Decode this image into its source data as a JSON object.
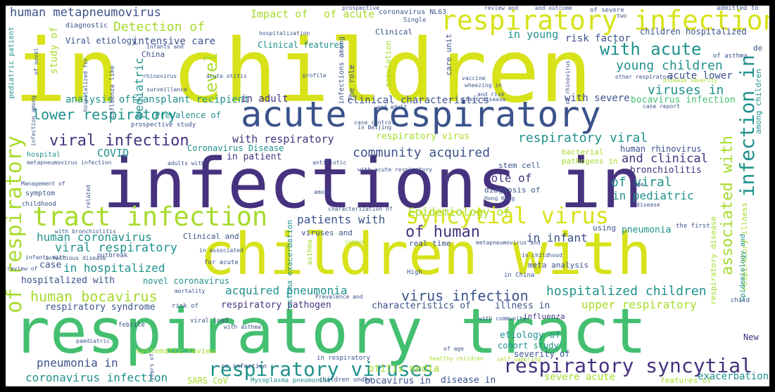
{
  "palette": {
    "yellow": "#d7e219",
    "lime": "#a6db2c",
    "green": "#44bf70",
    "teal": "#20918c",
    "blue": "#2e6f8e",
    "indigo": "#3b528b",
    "purple": "#46327e",
    "dark": "#440154",
    "border": "#000000",
    "background": "#ffffff"
  },
  "words": [
    {
      "text": "in children",
      "color": "yellow"
    },
    {
      "text": "infections in",
      "color": "purple"
    },
    {
      "text": "respiratory tract",
      "color": "green"
    },
    {
      "text": "children with",
      "color": "yellow"
    },
    {
      "text": "acute respiratory",
      "color": "indigo"
    },
    {
      "text": "respiratory infection",
      "color": "yellow"
    },
    {
      "text": "tract infection",
      "color": "lime"
    },
    {
      "text": "syncytial virus",
      "color": "yellow"
    },
    {
      "text": "respiratory syncytial",
      "color": "purple"
    },
    {
      "text": "respiratory viruses",
      "color": "teal"
    },
    {
      "text": "human metapneumovirus",
      "color": "indigo"
    },
    {
      "text": "of respiratory",
      "color": "lime"
    },
    {
      "text": "infection in",
      "color": "teal"
    },
    {
      "text": "associated with",
      "color": "lime"
    },
    {
      "text": "with acute",
      "color": "teal"
    },
    {
      "text": "young children",
      "color": "teal"
    },
    {
      "text": "viral infection",
      "color": "purple"
    },
    {
      "text": "lower respiratory",
      "color": "teal"
    },
    {
      "text": "human bocavirus",
      "color": "lime"
    },
    {
      "text": "of human",
      "color": "purple"
    },
    {
      "text": "hospitalized children",
      "color": "teal"
    },
    {
      "text": "virus infection",
      "color": "indigo"
    },
    {
      "text": "Detection of",
      "color": "lime"
    },
    {
      "text": "viral respiratory",
      "color": "teal"
    },
    {
      "text": "respiratory viral",
      "color": "teal"
    },
    {
      "text": "community acquired",
      "color": "indigo"
    },
    {
      "text": "acquired pneumonia",
      "color": "teal"
    },
    {
      "text": "pneumonia in",
      "color": "indigo"
    },
    {
      "text": "coronavirus infection",
      "color": "teal"
    },
    {
      "text": "Epidemiology of",
      "color": "lime"
    },
    {
      "text": "human coronavirus",
      "color": "teal"
    },
    {
      "text": "patients with",
      "color": "indigo"
    },
    {
      "text": "in hospitalized",
      "color": "teal"
    },
    {
      "text": "viruses in",
      "color": "teal"
    },
    {
      "text": "upper respiratory",
      "color": "lime"
    },
    {
      "text": "and clinical",
      "color": "purple"
    },
    {
      "text": "with respiratory",
      "color": "purple"
    },
    {
      "text": "in pediatric",
      "color": "teal"
    },
    {
      "text": "of viral",
      "color": "teal"
    },
    {
      "text": "Role of",
      "color": "purple"
    },
    {
      "text": "in infant",
      "color": "indigo"
    },
    {
      "text": "Impact of",
      "color": "lime"
    },
    {
      "text": "of acute",
      "color": "lime"
    },
    {
      "text": "in young",
      "color": "teal"
    },
    {
      "text": "risk factor",
      "color": "indigo"
    },
    {
      "text": "children hospitalized",
      "color": "indigo"
    },
    {
      "text": "acute lower",
      "color": "indigo"
    },
    {
      "text": "intensive care",
      "color": "indigo"
    },
    {
      "text": "Viral etiology",
      "color": "indigo"
    },
    {
      "text": "analysis of",
      "color": "teal"
    },
    {
      "text": "transplant recipient",
      "color": "teal"
    },
    {
      "text": "in adult",
      "color": "purple"
    },
    {
      "text": "Prevalence of",
      "color": "teal"
    },
    {
      "text": "clinical characteristics",
      "color": "indigo"
    },
    {
      "text": "with severe",
      "color": "indigo"
    },
    {
      "text": "bocavirus infection",
      "color": "green"
    },
    {
      "text": "respiratory virus",
      "color": "lime"
    },
    {
      "text": "bronchiolitis",
      "color": "purple"
    },
    {
      "text": "COVID",
      "color": "teal"
    },
    {
      "text": "in patient",
      "color": "purple"
    },
    {
      "text": "Coronavirus Disease",
      "color": "teal"
    },
    {
      "text": "human rhinovirus",
      "color": "indigo"
    },
    {
      "text": "respiratory pathogen",
      "color": "purple"
    },
    {
      "text": "characteristics of",
      "color": "indigo"
    },
    {
      "text": "illness in",
      "color": "indigo"
    },
    {
      "text": "respiratory syndrome",
      "color": "indigo"
    },
    {
      "text": "hospitalized with",
      "color": "indigo"
    },
    {
      "text": "novel coronavirus",
      "color": "teal"
    },
    {
      "text": "pneumonia",
      "color": "teal"
    },
    {
      "text": "etiology of",
      "color": "teal"
    },
    {
      "text": "cohort study",
      "color": "teal"
    },
    {
      "text": "severity of",
      "color": "indigo"
    },
    {
      "text": "otitis media",
      "color": "lime"
    },
    {
      "text": "severe acute",
      "color": "lime"
    },
    {
      "text": "disease in",
      "color": "indigo"
    },
    {
      "text": "bocavirus in",
      "color": "indigo"
    },
    {
      "text": "SARS CoV",
      "color": "lime"
    },
    {
      "text": "systematic review",
      "color": "lime"
    },
    {
      "text": "in respiratory",
      "color": "indigo"
    },
    {
      "text": "children under",
      "color": "indigo"
    },
    {
      "text": "Mycoplasma pneumoniae",
      "color": "teal"
    },
    {
      "text": "features of",
      "color": "lime"
    },
    {
      "text": "exacerbation",
      "color": "teal"
    },
    {
      "text": "New",
      "color": "purple"
    },
    {
      "text": "influenza",
      "color": "purple"
    },
    {
      "text": "stem cell",
      "color": "indigo"
    },
    {
      "text": "real time",
      "color": "indigo"
    },
    {
      "text": "meta analysis",
      "color": "indigo"
    },
    {
      "text": "the first",
      "color": "indigo"
    },
    {
      "text": "using",
      "color": "indigo"
    },
    {
      "text": "Clinical and",
      "color": "indigo"
    },
    {
      "text": "outbreak",
      "color": "indigo"
    },
    {
      "text": "infectious disease",
      "color": "indigo"
    },
    {
      "text": "case",
      "color": "indigo"
    },
    {
      "text": "symptom",
      "color": "indigo"
    },
    {
      "text": "hospital",
      "color": "teal"
    },
    {
      "text": "adults with",
      "color": "indigo"
    },
    {
      "text": "diagnostic",
      "color": "indigo"
    },
    {
      "text": "China",
      "color": "indigo"
    },
    {
      "text": "surveillance",
      "color": "indigo"
    },
    {
      "text": "Clinical features",
      "color": "teal"
    },
    {
      "text": "coronavirus NL63",
      "color": "indigo"
    },
    {
      "text": "Clinical",
      "color": "indigo"
    },
    {
      "text": "care unit",
      "color": "indigo"
    },
    {
      "text": "level",
      "color": "lime"
    },
    {
      "text": "pediatric",
      "color": "teal"
    },
    {
      "text": "study of",
      "color": "lime"
    },
    {
      "text": "pediatric patient",
      "color": "teal"
    },
    {
      "text": "infections among",
      "color": "indigo"
    },
    {
      "text": "The role",
      "color": "indigo"
    },
    {
      "text": "population",
      "color": "lime"
    },
    {
      "text": "asthma exacerbation",
      "color": "teal"
    },
    {
      "text": "asthma",
      "color": "lime"
    },
    {
      "text": "among children",
      "color": "teal"
    },
    {
      "text": "respiratory illness",
      "color": "lime"
    },
    {
      "text": "respiratory disease",
      "color": "lime"
    },
    {
      "text": "Epidemiology and",
      "color": "teal"
    },
    {
      "text": "de",
      "color": "indigo"
    },
    {
      "text": "child",
      "color": "indigo"
    },
    {
      "text": "High",
      "color": "indigo"
    },
    {
      "text": "and risk",
      "color": "indigo"
    },
    {
      "text": "in Beijing",
      "color": "indigo"
    },
    {
      "text": "case control",
      "color": "indigo"
    },
    {
      "text": "and adult",
      "color": "indigo"
    },
    {
      "text": "diagnosis of",
      "color": "indigo"
    },
    {
      "text": "Hong Kong",
      "color": "indigo"
    },
    {
      "text": "bacterial",
      "color": "lime"
    },
    {
      "text": "pathogens in",
      "color": "lime"
    },
    {
      "text": "prospective study",
      "color": "indigo"
    },
    {
      "text": "metapneumovirus infection",
      "color": "indigo"
    },
    {
      "text": "Management of",
      "color": "indigo"
    },
    {
      "text": "childhood",
      "color": "indigo"
    },
    {
      "text": "with bronchiolitis",
      "color": "indigo"
    },
    {
      "text": "viruses and",
      "color": "indigo"
    },
    {
      "text": "common",
      "color": "lime"
    },
    {
      "text": "for acute",
      "color": "indigo"
    },
    {
      "text": "with asthma",
      "color": "indigo"
    },
    {
      "text": "viral load",
      "color": "indigo"
    },
    {
      "text": "infants with",
      "color": "indigo"
    },
    {
      "text": "review of",
      "color": "indigo"
    },
    {
      "text": "mortality",
      "color": "indigo"
    },
    {
      "text": "risk of",
      "color": "indigo"
    },
    {
      "text": "Prevalence and",
      "color": "indigo"
    },
    {
      "text": "febrile",
      "color": "indigo"
    },
    {
      "text": "paediatric",
      "color": "indigo"
    },
    {
      "text": "co infection",
      "color": "indigo"
    },
    {
      "text": "years of",
      "color": "indigo"
    },
    {
      "text": "of age",
      "color": "indigo"
    },
    {
      "text": "self sampling",
      "color": "lime"
    },
    {
      "text": "with community",
      "color": "indigo"
    },
    {
      "text": "in China",
      "color": "indigo"
    },
    {
      "text": "Single",
      "color": "indigo"
    },
    {
      "text": "prospective",
      "color": "indigo"
    },
    {
      "text": "review and",
      "color": "indigo"
    },
    {
      "text": "and outcome",
      "color": "indigo"
    },
    {
      "text": "of severe",
      "color": "indigo"
    },
    {
      "text": "admitted to",
      "color": "indigo"
    },
    {
      "text": "two",
      "color": "indigo"
    },
    {
      "text": "of asthma",
      "color": "indigo"
    },
    {
      "text": "disease severity",
      "color": "lime"
    },
    {
      "text": "case report",
      "color": "indigo"
    },
    {
      "text": "other respiratory",
      "color": "indigo"
    },
    {
      "text": "profile",
      "color": "indigo"
    },
    {
      "text": "vaccine",
      "color": "indigo"
    },
    {
      "text": "wheezing in",
      "color": "indigo"
    },
    {
      "text": "rhinovirus",
      "color": "indigo"
    },
    {
      "text": "acute otitis",
      "color": "indigo"
    },
    {
      "text": "influenza like",
      "color": "indigo"
    },
    {
      "text": "hospitalization",
      "color": "indigo"
    },
    {
      "text": "infants and",
      "color": "indigo"
    },
    {
      "text": "tract disease",
      "color": "indigo"
    },
    {
      "text": "of novel",
      "color": "indigo"
    },
    {
      "text": "hospitalized for",
      "color": "indigo"
    },
    {
      "text": "infection among",
      "color": "indigo"
    },
    {
      "text": "antibiotic",
      "color": "indigo"
    },
    {
      "text": "related",
      "color": "indigo"
    },
    {
      "text": "age",
      "color": "indigo"
    },
    {
      "text": "among",
      "color": "indigo"
    },
    {
      "text": "characterization of",
      "color": "indigo"
    },
    {
      "text": "in associated",
      "color": "indigo"
    },
    {
      "text": "in childhood",
      "color": "indigo"
    },
    {
      "text": "metapneumovirus and",
      "color": "indigo"
    },
    {
      "text": "with acute respiratory",
      "color": "indigo"
    },
    {
      "text": "healthy children",
      "color": "lime"
    },
    {
      "text": "day",
      "color": "indigo"
    },
    {
      "text": "disease",
      "color": "indigo"
    },
    {
      "text": "of rhinovirus",
      "color": "indigo"
    }
  ]
}
